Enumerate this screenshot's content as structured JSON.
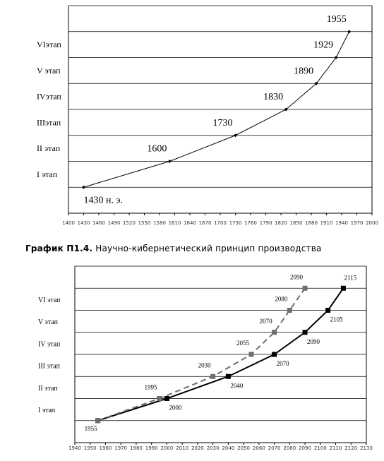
{
  "chart_data": [
    {
      "type": "line",
      "stages": [
        "I этап",
        "II этап",
        "IIIэтап",
        "IVэтап",
        "V этап",
        "VIэтап"
      ],
      "xlim": [
        1400,
        2000
      ],
      "xticks": [
        1400,
        1430,
        1460,
        1490,
        1520,
        1550,
        1580,
        1610,
        1640,
        1670,
        1700,
        1730,
        1760,
        1790,
        1820,
        1850,
        1880,
        1910,
        1940,
        1970,
        2000
      ],
      "ylim": [
        -1,
        7
      ],
      "yticks": [
        0,
        1,
        2,
        3,
        4,
        5,
        6,
        7
      ],
      "grid": true,
      "marker": "diamond",
      "series": [
        {
          "color": "#000000",
          "dashed": false,
          "x": [
            1430,
            1600,
            1730,
            1830,
            1890,
            1929,
            1955
          ],
          "values": [
            0,
            1,
            2,
            3,
            4,
            5,
            6
          ],
          "labels": [
            "1430 н. э.",
            "1600",
            "1730",
            "1830",
            "1890",
            "1929",
            "1955"
          ]
        }
      ]
    },
    {
      "type": "line",
      "stages": [
        "I этап",
        "II этап",
        "III этап",
        "IV этап",
        "V этап",
        "VI этап"
      ],
      "xlim": [
        1940,
        2130
      ],
      "xticks": [
        1940,
        1950,
        1960,
        1970,
        1980,
        1990,
        2000,
        2010,
        2020,
        2030,
        2040,
        2050,
        2060,
        2070,
        2080,
        2090,
        2100,
        2110,
        2120,
        2130
      ],
      "ylim": [
        -1,
        7
      ],
      "yticks": [
        0,
        1,
        2,
        3,
        4,
        5,
        6,
        7
      ],
      "grid": true,
      "marker": "square",
      "series": [
        {
          "color": "#000000",
          "dashed": false,
          "x": [
            1955,
            2000,
            2040,
            2070,
            2090,
            2105,
            2115
          ],
          "values": [
            0,
            1,
            2,
            3,
            4,
            5,
            6
          ],
          "labels": [
            "1955",
            "2000",
            "2040",
            "2070",
            "2090",
            "2105",
            "2115"
          ]
        },
        {
          "color": "#6e6e6e",
          "dashed": true,
          "x": [
            1955,
            1995,
            2030,
            2055,
            2070,
            2080,
            2090
          ],
          "values": [
            0,
            1,
            2,
            3,
            4,
            5,
            6
          ],
          "labels": [
            null,
            "1995",
            "2030",
            "2055",
            "2070",
            "2080",
            "2090"
          ]
        }
      ]
    }
  ],
  "caption": {
    "number": "График П1.4.",
    "text": "Научно-кибернетический принцип производства"
  }
}
